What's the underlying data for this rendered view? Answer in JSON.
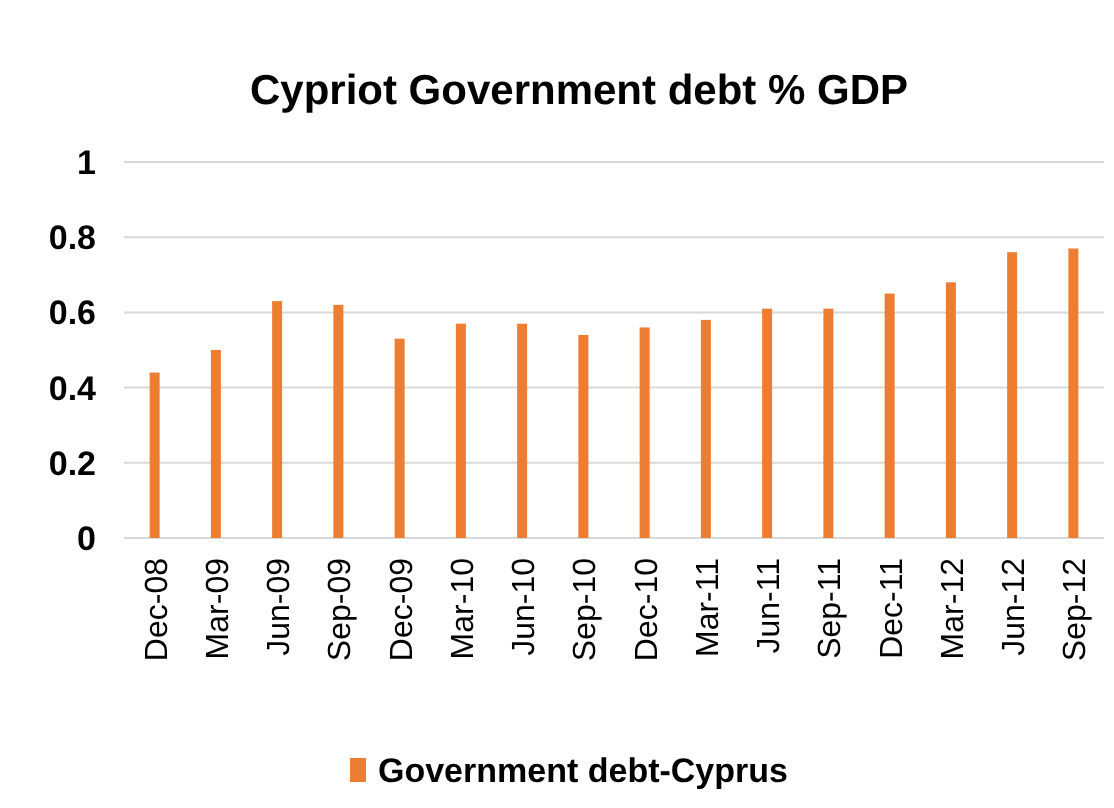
{
  "chart_data": {
    "type": "bar",
    "title": "Cypriot Government debt % GDP",
    "categories": [
      "Dec-08",
      "Mar-09",
      "Jun-09",
      "Sep-09",
      "Dec-09",
      "Mar-10",
      "Jun-10",
      "Sep-10",
      "Dec-10",
      "Mar-11",
      "Jun-11",
      "Sep-11",
      "Dec-11",
      "Mar-12",
      "Jun-12",
      "Sep-12"
    ],
    "series": [
      {
        "name": "Government debt-Cyprus",
        "color": "#ed7d31",
        "values": [
          0.44,
          0.5,
          0.63,
          0.62,
          0.53,
          0.57,
          0.57,
          0.54,
          0.56,
          0.58,
          0.61,
          0.61,
          0.65,
          0.68,
          0.76,
          0.77
        ]
      }
    ],
    "ylim": [
      0,
      1
    ],
    "yticks": [
      0,
      0.2,
      0.4,
      0.6,
      0.8,
      1
    ],
    "grid": "y",
    "legend": "bottom"
  }
}
